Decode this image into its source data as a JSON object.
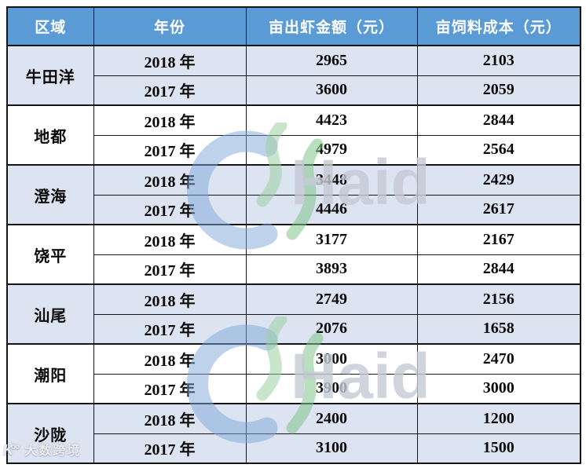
{
  "table": {
    "headers": [
      "区域",
      "年份",
      "亩出虾金额（元）",
      "亩饲料成本（元）"
    ],
    "groups": [
      {
        "region": "牛田洋",
        "rows": [
          {
            "year": "2018 年",
            "shrimp": "2965",
            "feed": "2103"
          },
          {
            "year": "2017 年",
            "shrimp": "3600",
            "feed": "2059"
          }
        ]
      },
      {
        "region": "地都",
        "rows": [
          {
            "year": "2018 年",
            "shrimp": "4423",
            "feed": "2844"
          },
          {
            "year": "2017 年",
            "shrimp": "4979",
            "feed": "2564"
          }
        ]
      },
      {
        "region": "澄海",
        "rows": [
          {
            "year": "2018 年",
            "shrimp": "3448",
            "feed": "2429"
          },
          {
            "year": "2017 年",
            "shrimp": "4446",
            "feed": "2617"
          }
        ]
      },
      {
        "region": "饶平",
        "rows": [
          {
            "year": "2018 年",
            "shrimp": "3177",
            "feed": "2167"
          },
          {
            "year": "2017 年",
            "shrimp": "3893",
            "feed": "2844"
          }
        ]
      },
      {
        "region": "汕尾",
        "rows": [
          {
            "year": "2018 年",
            "shrimp": "2749",
            "feed": "2156"
          },
          {
            "year": "2017 年",
            "shrimp": "2076",
            "feed": "1658"
          }
        ]
      },
      {
        "region": "潮阳",
        "rows": [
          {
            "year": "2018 年",
            "shrimp": "3000",
            "feed": "2470"
          },
          {
            "year": "2017 年",
            "shrimp": "3900",
            "feed": "3000"
          }
        ]
      },
      {
        "region": "沙陇",
        "rows": [
          {
            "year": "2018 年",
            "shrimp": "2400",
            "feed": "1200"
          },
          {
            "year": "2017 年",
            "shrimp": "3100",
            "feed": "1500"
          }
        ]
      }
    ]
  },
  "chart_data": {
    "type": "table",
    "title": "",
    "columns": [
      "区域",
      "年份",
      "亩出虾金额（元）",
      "亩饲料成本（元）"
    ],
    "rows": [
      [
        "牛田洋",
        "2018 年",
        2965,
        2103
      ],
      [
        "牛田洋",
        "2017 年",
        3600,
        2059
      ],
      [
        "地都",
        "2018 年",
        4423,
        2844
      ],
      [
        "地都",
        "2017 年",
        4979,
        2564
      ],
      [
        "澄海",
        "2018 年",
        3448,
        2429
      ],
      [
        "澄海",
        "2017 年",
        4446,
        2617
      ],
      [
        "饶平",
        "2018 年",
        3177,
        2167
      ],
      [
        "饶平",
        "2017 年",
        3893,
        2844
      ],
      [
        "汕尾",
        "2018 年",
        2749,
        2156
      ],
      [
        "汕尾",
        "2017 年",
        2076,
        1658
      ],
      [
        "潮阳",
        "2018 年",
        3000,
        2470
      ],
      [
        "潮阳",
        "2017 年",
        3900,
        3000
      ],
      [
        "沙陇",
        "2018 年",
        2400,
        1200
      ],
      [
        "沙陇",
        "2017 年",
        3100,
        1500
      ]
    ]
  },
  "watermarks": {
    "brand_text": "Haid",
    "brand_logo_icon": "haid-swoosh-logo-icon",
    "corner_text": "大数跨境",
    "corner_icon": "k-circles-logo-icon"
  },
  "colors": {
    "header_bg": "#5b9bd5",
    "header_text": "#ffffff",
    "band_bg": "#dce3f1",
    "white_bg": "#ffffff",
    "border": "#141414",
    "watermark_gray": "#c5cad5",
    "watermark_blue": "#7ea7d8",
    "watermark_green_light": "#9ccfa0",
    "watermark_green_dark": "#7fc48a"
  }
}
